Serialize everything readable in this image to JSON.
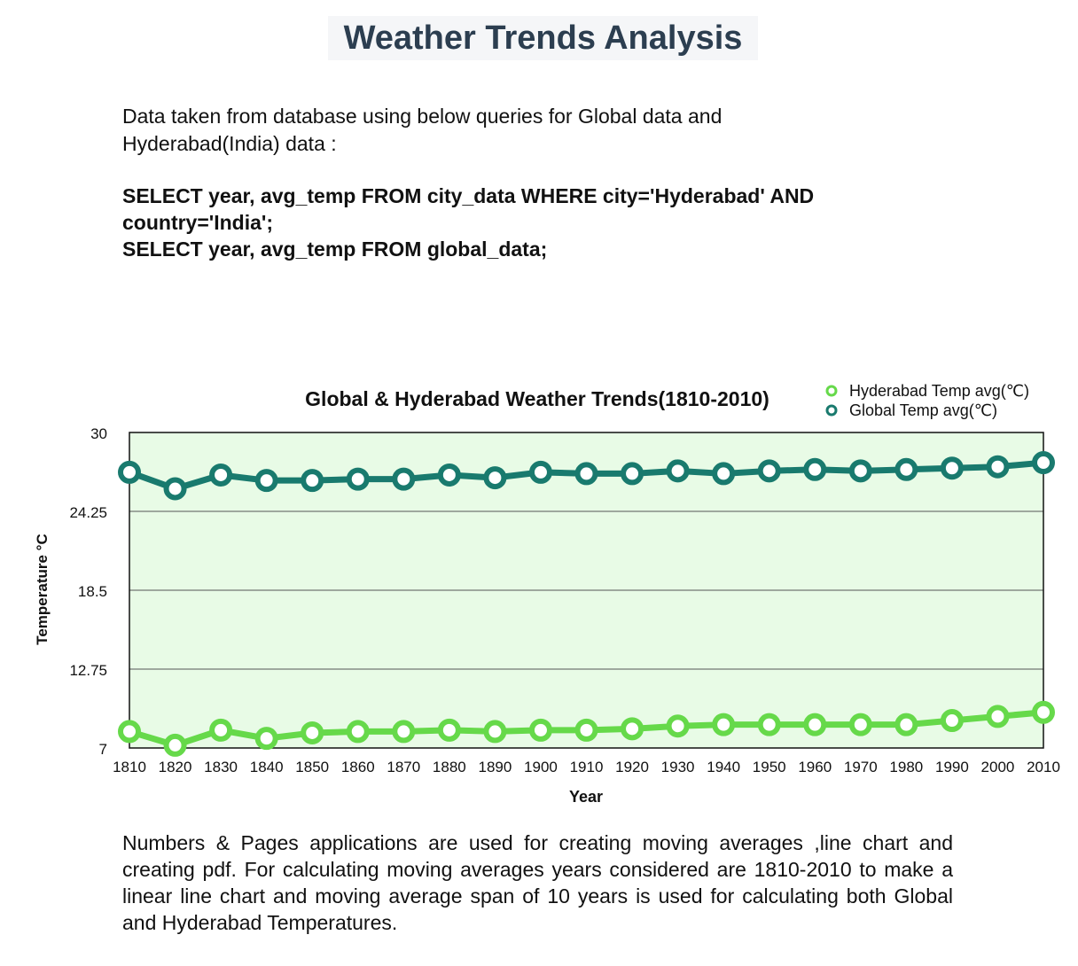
{
  "page": {
    "title": "Weather Trends Analysis",
    "intro": "Data taken from database using below queries for Global data and Hyderabad(India) data :",
    "query_1_line_1": "SELECT year, avg_temp FROM city_data WHERE city='Hyderabad' AND",
    "query_1_line_2": "country='India';",
    "query_2": "SELECT year, avg_temp FROM global_data;",
    "footer": "Numbers & Pages applications are used for creating moving averages ,line chart and creating pdf. For calculating moving averages years considered are 1810-2010 to make a linear line chart and moving average span of 10 years is used for calculating both Global and Hyderabad Temperatures."
  },
  "chart_data": {
    "type": "line",
    "title": "Global & Hyderabad Weather Trends(1810-2010)",
    "xlabel": "Year",
    "ylabel": "Temperature °C",
    "ylim": [
      7,
      30
    ],
    "yticks": [
      7,
      12.75,
      18.5,
      24.25,
      30
    ],
    "ytick_labels": [
      "7",
      "12.75",
      "18.5",
      "24.25",
      "30"
    ],
    "x": [
      1810,
      1820,
      1830,
      1840,
      1850,
      1860,
      1870,
      1880,
      1890,
      1900,
      1910,
      1920,
      1930,
      1940,
      1950,
      1960,
      1970,
      1980,
      1990,
      2000,
      2010
    ],
    "x_labels": [
      "1810",
      "1820",
      "1830",
      "1840",
      "1850",
      "1860",
      "1870",
      "1880",
      "1890",
      "1900",
      "1910",
      "1920",
      "1930",
      "1940",
      "1950",
      "1960",
      "1970",
      "1980",
      "1990",
      "2000",
      "2010"
    ],
    "grid": true,
    "legend": "top-right",
    "plot_background": "#e8fbe6",
    "series": [
      {
        "name": "Hyderabad Temp avg(℃)",
        "color": "#66d94a",
        "values": [
          8.2,
          7.2,
          8.3,
          7.7,
          8.1,
          8.2,
          8.2,
          8.3,
          8.2,
          8.3,
          8.3,
          8.4,
          8.6,
          8.7,
          8.7,
          8.7,
          8.7,
          8.7,
          9.0,
          9.3,
          9.6
        ]
      },
      {
        "name": "Global Temp avg(℃)",
        "color": "#197a6e",
        "values": [
          27.1,
          25.9,
          26.9,
          26.5,
          26.5,
          26.6,
          26.6,
          26.9,
          26.7,
          27.1,
          27.0,
          27.0,
          27.2,
          27.0,
          27.2,
          27.3,
          27.2,
          27.3,
          27.4,
          27.5,
          27.8
        ]
      }
    ]
  }
}
